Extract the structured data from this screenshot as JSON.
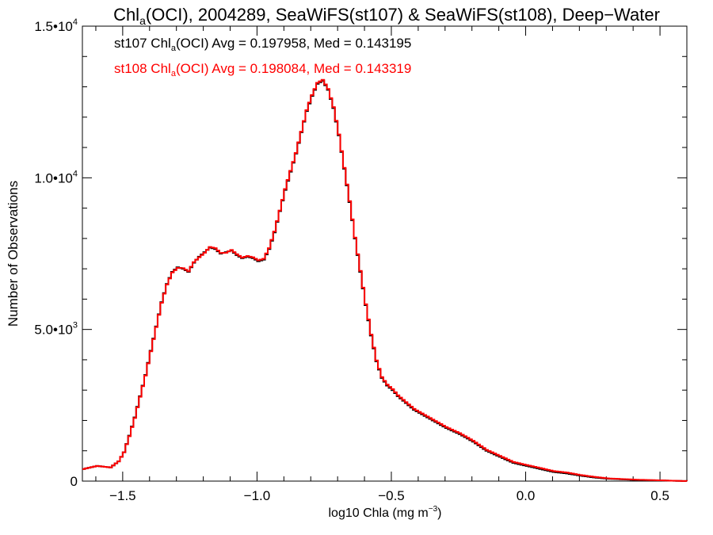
{
  "chart_data": {
    "type": "line",
    "title": {
      "main": "Chl",
      "sub": "a",
      "rest": "(OCI), 2004289, SeaWiFS(st107) & SeaWiFS(st108), Deep−Water"
    },
    "xlabel": {
      "main": "log10 Chla (mg m",
      "sup": "−3",
      "end": ")"
    },
    "ylabel": "Number of Observations",
    "xlim": [
      -1.65,
      0.6
    ],
    "ylim": [
      0,
      15000
    ],
    "x_ticks": [
      {
        "value": -1.5,
        "label": "−1.5"
      },
      {
        "value": -1.0,
        "label": "−1.0"
      },
      {
        "value": -0.5,
        "label": "−0.5"
      },
      {
        "value": 0.0,
        "label": "0.0"
      },
      {
        "value": 0.5,
        "label": "0.5"
      }
    ],
    "y_ticks": [
      {
        "value": 0,
        "mant": "0",
        "exp": ""
      },
      {
        "value": 5000,
        "mant": "5.0•10",
        "exp": "3"
      },
      {
        "value": 10000,
        "mant": "1.0•10",
        "exp": "4"
      },
      {
        "value": 15000,
        "mant": "1.5•10",
        "exp": "4"
      }
    ],
    "legend": [
      {
        "pre": "st107 Chl",
        "sub": "a",
        "post": "(OCI) Avg = 0.197958, Med = 0.143195",
        "color": "#000000"
      },
      {
        "pre": "st108 Chl",
        "sub": "a",
        "post": "(OCI) Avg = 0.198084, Med = 0.143319",
        "color": "#ff0000"
      }
    ],
    "legend_position": "top-left",
    "series": [
      {
        "color": "#000000",
        "x": [
          -1.65,
          -1.6,
          -1.55,
          -1.52,
          -1.5,
          -1.48,
          -1.46,
          -1.44,
          -1.42,
          -1.4,
          -1.38,
          -1.36,
          -1.34,
          -1.32,
          -1.3,
          -1.28,
          -1.26,
          -1.24,
          -1.22,
          -1.2,
          -1.18,
          -1.16,
          -1.14,
          -1.12,
          -1.1,
          -1.08,
          -1.06,
          -1.04,
          -1.02,
          -1.0,
          -0.98,
          -0.96,
          -0.94,
          -0.92,
          -0.9,
          -0.88,
          -0.86,
          -0.84,
          -0.82,
          -0.8,
          -0.78,
          -0.76,
          -0.74,
          -0.72,
          -0.7,
          -0.68,
          -0.66,
          -0.64,
          -0.62,
          -0.6,
          -0.58,
          -0.56,
          -0.54,
          -0.52,
          -0.5,
          -0.48,
          -0.46,
          -0.44,
          -0.42,
          -0.4,
          -0.35,
          -0.3,
          -0.25,
          -0.2,
          -0.15,
          -0.1,
          -0.05,
          0.0,
          0.05,
          0.1,
          0.15,
          0.2,
          0.25,
          0.3,
          0.35,
          0.4,
          0.45,
          0.5,
          0.55,
          0.6
        ],
        "y": [
          400,
          500,
          450,
          650,
          950,
          1500,
          2100,
          2800,
          3500,
          4300,
          5100,
          5900,
          6500,
          6900,
          7050,
          7000,
          6900,
          7200,
          7400,
          7550,
          7700,
          7650,
          7500,
          7550,
          7600,
          7450,
          7350,
          7400,
          7350,
          7250,
          7300,
          7650,
          8200,
          8900,
          9600,
          10200,
          10800,
          11500,
          12200,
          12700,
          13100,
          13200,
          12900,
          12300,
          11400,
          10300,
          9200,
          8000,
          6900,
          5800,
          4800,
          3950,
          3400,
          3150,
          3000,
          2800,
          2650,
          2500,
          2350,
          2250,
          2000,
          1750,
          1550,
          1300,
          1000,
          800,
          600,
          500,
          400,
          300,
          250,
          180,
          120,
          80,
          60,
          40,
          30,
          20,
          10,
          0
        ]
      },
      {
        "color": "#ff0000",
        "x": [
          -1.65,
          -1.6,
          -1.55,
          -1.52,
          -1.5,
          -1.48,
          -1.46,
          -1.44,
          -1.42,
          -1.4,
          -1.38,
          -1.36,
          -1.34,
          -1.32,
          -1.3,
          -1.28,
          -1.26,
          -1.24,
          -1.22,
          -1.2,
          -1.18,
          -1.16,
          -1.14,
          -1.12,
          -1.1,
          -1.08,
          -1.06,
          -1.04,
          -1.02,
          -1.0,
          -0.98,
          -0.96,
          -0.94,
          -0.92,
          -0.9,
          -0.88,
          -0.86,
          -0.84,
          -0.82,
          -0.8,
          -0.78,
          -0.76,
          -0.74,
          -0.72,
          -0.7,
          -0.68,
          -0.66,
          -0.64,
          -0.62,
          -0.6,
          -0.58,
          -0.56,
          -0.54,
          -0.52,
          -0.5,
          -0.48,
          -0.46,
          -0.44,
          -0.42,
          -0.4,
          -0.35,
          -0.3,
          -0.25,
          -0.2,
          -0.15,
          -0.1,
          -0.05,
          0.0,
          0.05,
          0.1,
          0.15,
          0.2,
          0.25,
          0.3,
          0.35,
          0.4,
          0.45,
          0.5,
          0.55,
          0.6
        ],
        "y": [
          400,
          500,
          450,
          650,
          950,
          1480,
          2080,
          2780,
          3480,
          4280,
          5080,
          5880,
          6480,
          6880,
          7030,
          7020,
          6920,
          7220,
          7380,
          7530,
          7720,
          7680,
          7520,
          7530,
          7620,
          7480,
          7370,
          7420,
          7380,
          7280,
          7330,
          7680,
          8230,
          8920,
          9630,
          10230,
          10820,
          11520,
          12230,
          12730,
          13130,
          13230,
          12930,
          12330,
          11430,
          10330,
          9230,
          8030,
          6930,
          5830,
          4830,
          3980,
          3430,
          3180,
          3030,
          2830,
          2680,
          2530,
          2380,
          2280,
          2030,
          1780,
          1580,
          1330,
          1030,
          830,
          630,
          530,
          430,
          330,
          280,
          200,
          140,
          90,
          70,
          50,
          35,
          25,
          12,
          0
        ]
      }
    ]
  }
}
